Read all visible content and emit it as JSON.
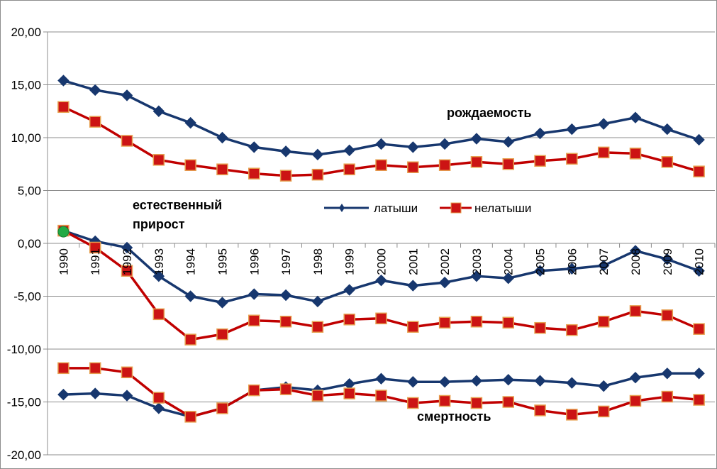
{
  "chart_data": {
    "type": "line",
    "title": "",
    "xlabel": "",
    "ylabel": "",
    "ylim": [
      -20,
      20
    ],
    "y_ticks": [
      "20,00",
      "15,00",
      "10,00",
      "5,00",
      "0,00",
      "-5,00",
      "-10,00",
      "-15,00",
      "-20,00"
    ],
    "y_tick_values": [
      20,
      15,
      10,
      5,
      0,
      -5,
      -10,
      -15,
      -20
    ],
    "categories": [
      "1990",
      "1991",
      "1992",
      "1993",
      "1994",
      "1995",
      "1996",
      "1997",
      "1998",
      "1999",
      "2000",
      "2001",
      "2002",
      "2003",
      "2004",
      "2005",
      "2006",
      "2007",
      "2008",
      "2009",
      "2010"
    ],
    "grid": "horizontal",
    "legend_position": "center",
    "legend": [
      "латыши",
      "нелатыши"
    ],
    "colors": {
      "latvians": "#17376e",
      "nonlatvians": "#c00000",
      "nonlatvians_fill": "#cc1414",
      "marker_edge": "#e6a050",
      "highlight": "#22aa44"
    },
    "annotations": [
      "рождаемость",
      "естественный",
      "прирост",
      "смертность"
    ],
    "series": [
      {
        "name": "латыши",
        "group": "рождаемость",
        "marker": "diamond",
        "values": [
          15.4,
          14.5,
          14.0,
          12.5,
          11.4,
          10.0,
          9.1,
          8.7,
          8.4,
          8.8,
          9.4,
          9.1,
          9.4,
          9.9,
          9.6,
          10.4,
          10.8,
          11.3,
          11.9,
          10.8,
          9.8
        ]
      },
      {
        "name": "нелатыши",
        "group": "рождаемость",
        "marker": "square",
        "values": [
          12.9,
          11.5,
          9.7,
          7.9,
          7.4,
          7.0,
          6.6,
          6.4,
          6.5,
          7.0,
          7.4,
          7.2,
          7.4,
          7.7,
          7.5,
          7.8,
          8.0,
          8.6,
          8.5,
          7.7,
          6.8
        ]
      },
      {
        "name": "латыши",
        "group": "естественный прирост",
        "marker": "diamond",
        "values": [
          1.2,
          0.2,
          -0.4,
          -3.1,
          -5.0,
          -5.6,
          -4.8,
          -4.9,
          -5.5,
          -4.4,
          -3.5,
          -4.0,
          -3.7,
          -3.1,
          -3.3,
          -2.6,
          -2.4,
          -2.1,
          -0.7,
          -1.5,
          -2.6
        ]
      },
      {
        "name": "нелатыши",
        "group": "естественный прирост",
        "marker": "square",
        "values": [
          1.2,
          -0.4,
          -2.6,
          -6.7,
          -9.1,
          -8.6,
          -7.3,
          -7.4,
          -7.9,
          -7.2,
          -7.1,
          -7.9,
          -7.5,
          -7.4,
          -7.5,
          -8.0,
          -8.2,
          -7.4,
          -6.4,
          -6.8,
          -8.1
        ]
      },
      {
        "name": "латыши",
        "group": "смертность",
        "marker": "diamond",
        "values": [
          -14.3,
          -14.2,
          -14.4,
          -15.6,
          -16.4,
          -15.6,
          -13.9,
          -13.6,
          -13.9,
          -13.3,
          -12.8,
          -13.1,
          -13.1,
          -13.0,
          -12.9,
          -13.0,
          -13.2,
          -13.5,
          -12.7,
          -12.3,
          -12.3
        ]
      },
      {
        "name": "нелатыши",
        "group": "смертность",
        "marker": "square",
        "values": [
          -11.8,
          -11.8,
          -12.2,
          -14.6,
          -16.4,
          -15.6,
          -13.9,
          -13.8,
          -14.4,
          -14.2,
          -14.4,
          -15.1,
          -14.9,
          -15.1,
          -15.0,
          -15.8,
          -16.2,
          -15.9,
          -14.9,
          -14.5,
          -14.8
        ]
      }
    ],
    "highlight_point": {
      "category": "1990",
      "value": 1.1
    }
  }
}
